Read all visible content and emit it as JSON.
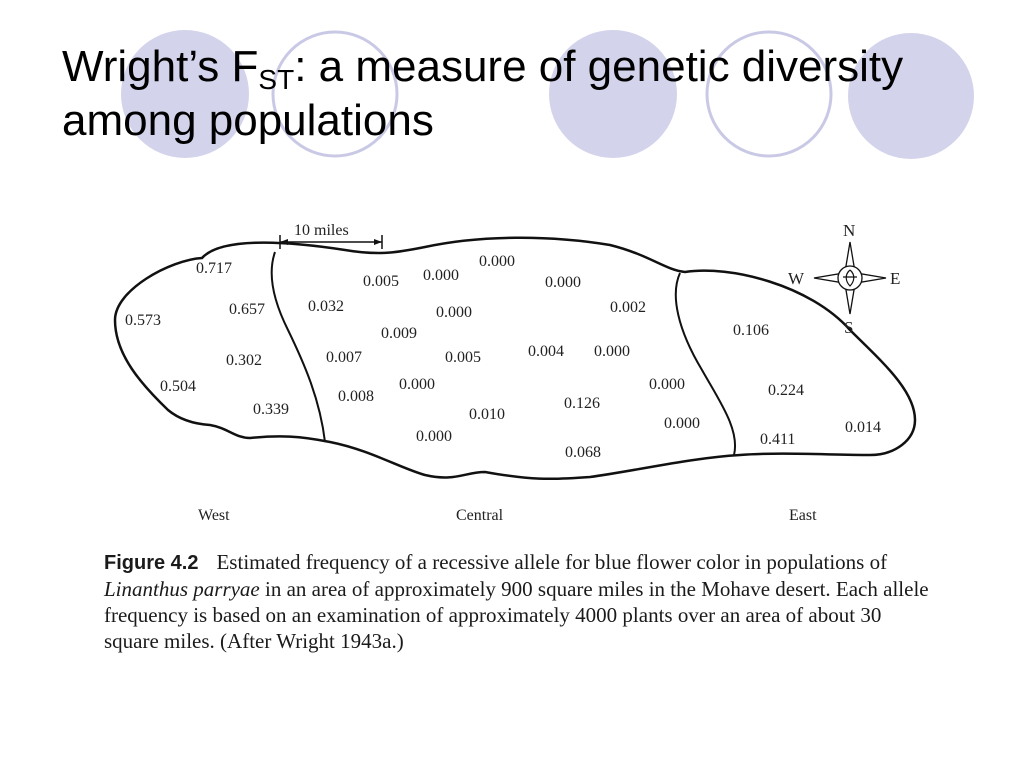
{
  "slide": {
    "title_main": "Wright’s F",
    "title_sub": "ST",
    "title_rest": ": a measure of genetic diversity among populations",
    "accent_color": "#d3d3ec",
    "ring_color": "#c9c9e6"
  },
  "figure": {
    "scale_label": "10 miles",
    "compass": {
      "n": "N",
      "s": "S",
      "e": "E",
      "w": "W"
    },
    "regions": {
      "west": "West",
      "central": "Central",
      "east": "East"
    },
    "frequencies": {
      "west": [
        "0.717",
        "0.573",
        "0.657",
        "0.302",
        "0.504",
        "0.339"
      ],
      "central": [
        "0.005",
        "0.000",
        "0.000",
        "0.000",
        "0.032",
        "0.000",
        "0.002",
        "0.009",
        "0.007",
        "0.005",
        "0.004",
        "0.000",
        "0.008",
        "0.000",
        "0.000",
        "0.010",
        "0.126",
        "0.000",
        "0.000",
        "0.068"
      ],
      "east": [
        "0.106",
        "0.224",
        "0.014",
        "0.411"
      ]
    }
  },
  "caption": {
    "label": "Figure 4.2",
    "text_before_italic": "Estimated frequency of a recessive allele for blue flower color in populations of ",
    "italic": "Linanthus parryae",
    "text_after_italic": " in an area of approximately 900 square miles in the Mohave desert. Each allele frequency is based on an examination of approximately 4000 plants over an area of about 30 square miles. (After Wright 1943a.)"
  }
}
